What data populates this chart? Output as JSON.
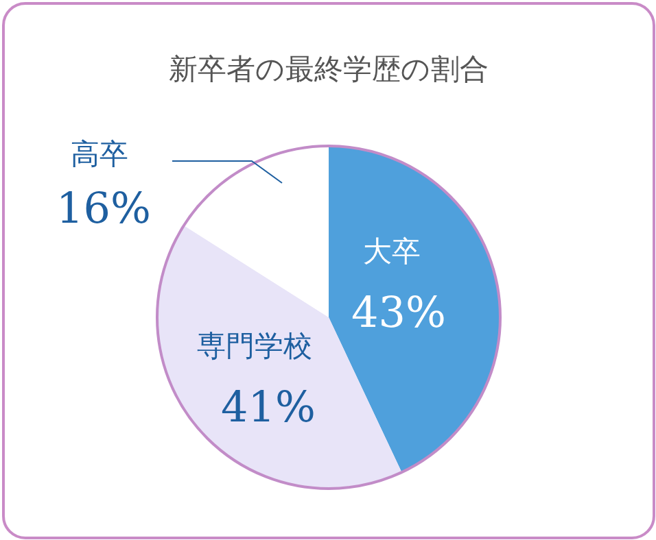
{
  "chart_data": {
    "type": "pie",
    "title": "新卒者の最終学歴の割合",
    "categories": [
      "大卒",
      "専門学校",
      "高卒"
    ],
    "values": [
      43,
      41,
      16
    ],
    "colors": [
      "#4fa0dc",
      "#e8e4f8",
      "#ffffff"
    ],
    "value_labels": [
      "43%",
      "41%",
      "16%"
    ]
  }
}
